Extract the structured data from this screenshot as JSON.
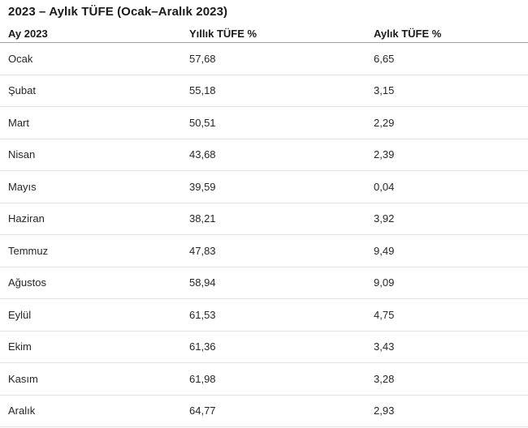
{
  "page": {
    "title": "2023 – Aylık TÜFE (Ocak–Aralık 2023)"
  },
  "table": {
    "columns": [
      "Ay 2023",
      "Yıllık TÜFE %",
      "Aylık TÜFE %"
    ],
    "rows": [
      [
        "Ocak",
        "57,68",
        "6,65"
      ],
      [
        "Şubat",
        "55,18",
        "3,15"
      ],
      [
        "Mart",
        "50,51",
        "2,29"
      ],
      [
        "Nisan",
        "43,68",
        "2,39"
      ],
      [
        "Mayıs",
        "39,59",
        "0,04"
      ],
      [
        "Haziran",
        "38,21",
        "3,92"
      ],
      [
        "Temmuz",
        "47,83",
        "9,49"
      ],
      [
        "Ağustos",
        "58,94",
        "9,09"
      ],
      [
        "Eylül",
        "61,53",
        "4,75"
      ],
      [
        "Ekim",
        "61,36",
        "3,43"
      ],
      [
        "Kasım",
        "61,98",
        "3,28"
      ],
      [
        "Aralık",
        "64,77",
        "2,93"
      ]
    ]
  },
  "chart_data": {
    "type": "table",
    "title": "2023 – Aylık TÜFE (Ocak–Aralık 2023)",
    "columns": [
      "Ay 2023",
      "Yıllık TÜFE %",
      "Aylık TÜFE %"
    ],
    "categories": [
      "Ocak",
      "Şubat",
      "Mart",
      "Nisan",
      "Mayıs",
      "Haziran",
      "Temmuz",
      "Ağustos",
      "Eylül",
      "Ekim",
      "Kasım",
      "Aralık"
    ],
    "series": [
      {
        "name": "Yıllık TÜFE %",
        "values": [
          57.68,
          55.18,
          50.51,
          43.68,
          39.59,
          38.21,
          47.83,
          58.94,
          61.53,
          61.36,
          61.98,
          64.77
        ]
      },
      {
        "name": "Aylık TÜFE %",
        "values": [
          6.65,
          3.15,
          2.29,
          2.39,
          0.04,
          3.92,
          9.49,
          9.09,
          4.75,
          3.43,
          3.28,
          2.93
        ]
      }
    ],
    "colors": {
      "title_text": "#1a1a1a",
      "body_text": "#262626",
      "header_rule": "#a3a3a3",
      "row_rule": "#e2e2e2",
      "background": "#ffffff"
    }
  }
}
